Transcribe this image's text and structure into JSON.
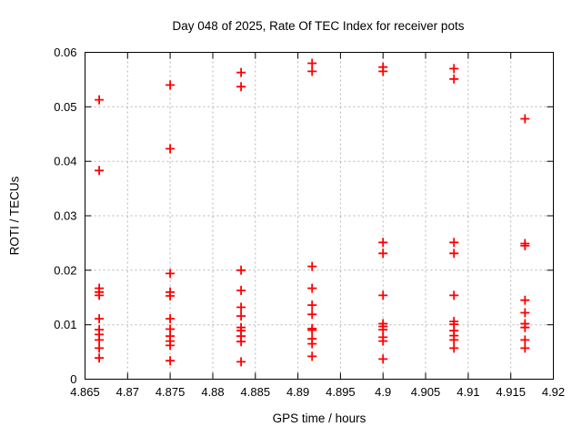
{
  "chart_data": {
    "type": "scatter",
    "title": "Day 048 of 2025, Rate Of TEC Index for receiver pots",
    "xlabel": "GPS time / hours",
    "ylabel": "ROTI / TECUs",
    "xlim": [
      4.865,
      4.92
    ],
    "ylim": [
      0,
      0.06
    ],
    "xticks": [
      4.865,
      4.87,
      4.875,
      4.88,
      4.885,
      4.89,
      4.895,
      4.9,
      4.905,
      4.91,
      4.915,
      4.92
    ],
    "xtick_labels": [
      "4.865",
      "4.87",
      "4.875",
      "4.88",
      "4.885",
      "4.89",
      "4.895",
      "4.9",
      "4.905",
      "4.91",
      "4.915",
      "4.92"
    ],
    "yticks": [
      0,
      0.01,
      0.02,
      0.03,
      0.04,
      0.05,
      0.06
    ],
    "ytick_labels": [
      "0",
      "0.01",
      "0.02",
      "0.03",
      "0.04",
      "0.05",
      "0.06"
    ],
    "grid": true,
    "grid_style": "dashed",
    "legend_position": "none",
    "colors": {
      "marker": "#ff0000",
      "grid": "#b5b5b5",
      "frame": "#000000",
      "text": "#000000",
      "background": "#ffffff"
    },
    "marker_shape": "plus",
    "series": [
      {
        "name": "ROTI",
        "color": "#ff0000",
        "points": [
          [
            4.86667,
            0.0513
          ],
          [
            4.86667,
            0.0383
          ],
          [
            4.86667,
            0.0167
          ],
          [
            4.86667,
            0.016
          ],
          [
            4.86667,
            0.0154
          ],
          [
            4.86667,
            0.0111
          ],
          [
            4.86667,
            0.0091
          ],
          [
            4.86667,
            0.0082
          ],
          [
            4.86667,
            0.0072
          ],
          [
            4.86667,
            0.0057
          ],
          [
            4.86667,
            0.0039
          ],
          [
            4.875,
            0.054
          ],
          [
            4.875,
            0.0423
          ],
          [
            4.875,
            0.0194
          ],
          [
            4.875,
            0.016
          ],
          [
            4.875,
            0.0153
          ],
          [
            4.875,
            0.0111
          ],
          [
            4.875,
            0.0092
          ],
          [
            4.875,
            0.0079
          ],
          [
            4.875,
            0.007
          ],
          [
            4.875,
            0.0062
          ],
          [
            4.875,
            0.0034
          ],
          [
            4.88333,
            0.0563
          ],
          [
            4.88333,
            0.0537
          ],
          [
            4.88333,
            0.02
          ],
          [
            4.88333,
            0.0163
          ],
          [
            4.88333,
            0.0132
          ],
          [
            4.88333,
            0.0116
          ],
          [
            4.88333,
            0.0095
          ],
          [
            4.88333,
            0.0089
          ],
          [
            4.88333,
            0.0079
          ],
          [
            4.88333,
            0.0069
          ],
          [
            4.88333,
            0.0032
          ],
          [
            4.89167,
            0.058
          ],
          [
            4.89167,
            0.0565
          ],
          [
            4.89167,
            0.0207
          ],
          [
            4.89167,
            0.0167
          ],
          [
            4.89167,
            0.0136
          ],
          [
            4.89167,
            0.0119
          ],
          [
            4.89167,
            0.0093
          ],
          [
            4.89167,
            0.009
          ],
          [
            4.89167,
            0.0074
          ],
          [
            4.89167,
            0.0065
          ],
          [
            4.89167,
            0.0042
          ],
          [
            4.9,
            0.0573
          ],
          [
            4.9,
            0.0565
          ],
          [
            4.9,
            0.0251
          ],
          [
            4.9,
            0.0231
          ],
          [
            4.9,
            0.0154
          ],
          [
            4.9,
            0.0102
          ],
          [
            4.9,
            0.0097
          ],
          [
            4.9,
            0.0091
          ],
          [
            4.9,
            0.0077
          ],
          [
            4.9,
            0.007
          ],
          [
            4.9,
            0.0037
          ],
          [
            4.90833,
            0.057
          ],
          [
            4.90833,
            0.0551
          ],
          [
            4.90833,
            0.0251
          ],
          [
            4.90833,
            0.0231
          ],
          [
            4.90833,
            0.0154
          ],
          [
            4.90833,
            0.0106
          ],
          [
            4.90833,
            0.0101
          ],
          [
            4.90833,
            0.0089
          ],
          [
            4.90833,
            0.008
          ],
          [
            4.90833,
            0.0072
          ],
          [
            4.90833,
            0.0057
          ],
          [
            4.91667,
            0.0478
          ],
          [
            4.91667,
            0.0249
          ],
          [
            4.91667,
            0.0245
          ],
          [
            4.91667,
            0.0145
          ],
          [
            4.91667,
            0.0122
          ],
          [
            4.91667,
            0.0102
          ],
          [
            4.91667,
            0.0095
          ],
          [
            4.91667,
            0.0072
          ],
          [
            4.91667,
            0.0057
          ]
        ]
      }
    ]
  }
}
